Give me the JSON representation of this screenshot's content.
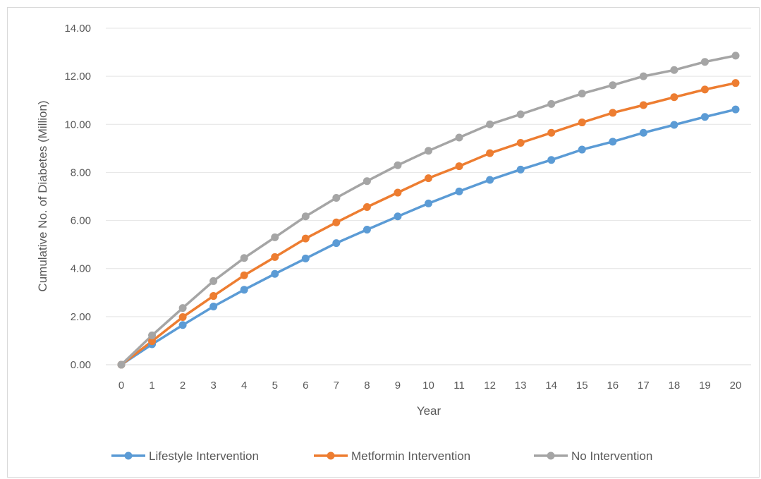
{
  "chart_data": {
    "type": "line",
    "title": "",
    "xlabel": "Year",
    "ylabel": "Cumulative No. of Diabetes (Million)",
    "categories": [
      "0",
      "1",
      "2",
      "3",
      "4",
      "5",
      "6",
      "7",
      "8",
      "9",
      "10",
      "11",
      "12",
      "13",
      "14",
      "15",
      "16",
      "17",
      "18",
      "19",
      "20"
    ],
    "ylim": [
      0,
      14
    ],
    "yticks": [
      "0.00",
      "2.00",
      "4.00",
      "6.00",
      "8.00",
      "10.00",
      "12.00",
      "14.00"
    ],
    "ytick_values": [
      0,
      2,
      4,
      6,
      8,
      10,
      12,
      14
    ],
    "grid": true,
    "legend_position": "bottom",
    "series": [
      {
        "name": "Lifestyle Intervention",
        "color": "#5b9bd5",
        "values": [
          0,
          0.85,
          1.65,
          2.42,
          3.12,
          3.78,
          4.42,
          5.06,
          5.62,
          6.17,
          6.71,
          7.21,
          7.69,
          8.12,
          8.52,
          8.95,
          9.28,
          9.65,
          9.98,
          10.31,
          10.62
        ]
      },
      {
        "name": "Metformin Intervention",
        "color": "#ed7d31",
        "values": [
          0,
          0.98,
          1.98,
          2.86,
          3.72,
          4.48,
          5.25,
          5.92,
          6.56,
          7.16,
          7.76,
          8.26,
          8.8,
          9.23,
          9.65,
          10.08,
          10.48,
          10.8,
          11.13,
          11.45,
          11.72
        ]
      },
      {
        "name": "No Intervention",
        "color": "#a5a5a5",
        "values": [
          0,
          1.22,
          2.36,
          3.48,
          4.44,
          5.3,
          6.17,
          6.94,
          7.64,
          8.3,
          8.9,
          9.45,
          10.0,
          10.42,
          10.85,
          11.28,
          11.63,
          12.0,
          12.26,
          12.6,
          12.86
        ]
      }
    ]
  }
}
